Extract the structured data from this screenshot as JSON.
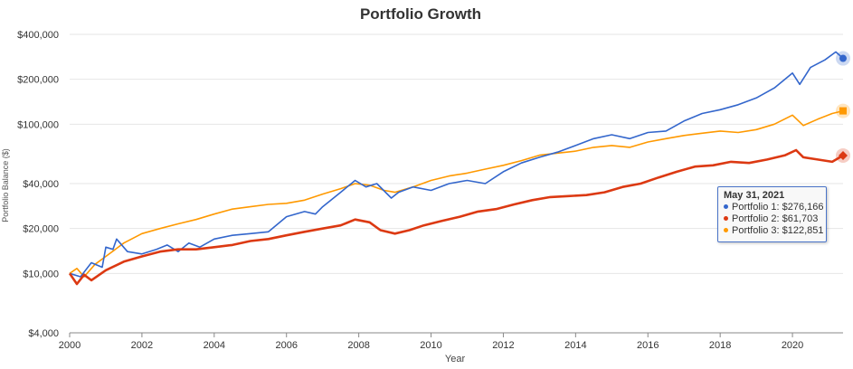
{
  "title": "Portfolio Growth",
  "colors": {
    "portfolio1": "#3366cc",
    "portfolio2": "#dc3912",
    "portfolio3": "#ff9900",
    "grid": "#e6e6e6",
    "axis": "#888888"
  },
  "tooltip": {
    "date": "May 31, 2021",
    "rows": [
      {
        "label": "Portfolio 1: $276,166",
        "color": "#3366cc"
      },
      {
        "label": "Portfolio 2: $61,703",
        "color": "#dc3912"
      },
      {
        "label": "Portfolio 3: $122,851",
        "color": "#ff9900"
      }
    ]
  },
  "chart_data": {
    "type": "line",
    "title": "Portfolio Growth",
    "xlabel": "Year",
    "ylabel": "Portfolio Balance ($)",
    "yscale": "log",
    "ylim": [
      4000,
      400000
    ],
    "xlim": [
      2000,
      2021.4
    ],
    "x_ticks": [
      "2000",
      "2002",
      "2004",
      "2006",
      "2008",
      "2010",
      "2012",
      "2014",
      "2016",
      "2018",
      "2020"
    ],
    "y_ticks": [
      {
        "value": 4000,
        "label": "$4,000"
      },
      {
        "value": 10000,
        "label": "$10,000"
      },
      {
        "value": 20000,
        "label": "$20,000"
      },
      {
        "value": 40000,
        "label": "$40,000"
      },
      {
        "value": 100000,
        "label": "$100,000"
      },
      {
        "value": 200000,
        "label": "$200,000"
      },
      {
        "value": 400000,
        "label": "$400,000"
      }
    ],
    "grid": true,
    "legend": "none",
    "series": [
      {
        "name": "Portfolio 1",
        "color": "#3366cc",
        "marker": "circle",
        "points": [
          [
            2000.0,
            10000
          ],
          [
            2000.3,
            9500
          ],
          [
            2000.6,
            11800
          ],
          [
            2000.9,
            11000
          ],
          [
            2001.0,
            15000
          ],
          [
            2001.2,
            14500
          ],
          [
            2001.3,
            17000
          ],
          [
            2001.6,
            14000
          ],
          [
            2002.0,
            13500
          ],
          [
            2002.4,
            14500
          ],
          [
            2002.7,
            15500
          ],
          [
            2003.0,
            14000
          ],
          [
            2003.3,
            16000
          ],
          [
            2003.6,
            15000
          ],
          [
            2004.0,
            17000
          ],
          [
            2004.5,
            18000
          ],
          [
            2005.0,
            18500
          ],
          [
            2005.5,
            19000
          ],
          [
            2006.0,
            24000
          ],
          [
            2006.5,
            26000
          ],
          [
            2006.8,
            25000
          ],
          [
            2007.0,
            28000
          ],
          [
            2007.5,
            35000
          ],
          [
            2007.9,
            42000
          ],
          [
            2008.2,
            38000
          ],
          [
            2008.5,
            40000
          ],
          [
            2008.9,
            32000
          ],
          [
            2009.1,
            35000
          ],
          [
            2009.5,
            38000
          ],
          [
            2010.0,
            36000
          ],
          [
            2010.5,
            40000
          ],
          [
            2011.0,
            42000
          ],
          [
            2011.5,
            40000
          ],
          [
            2012.0,
            48000
          ],
          [
            2012.5,
            55000
          ],
          [
            2013.0,
            60000
          ],
          [
            2013.5,
            65000
          ],
          [
            2014.0,
            72000
          ],
          [
            2014.5,
            80000
          ],
          [
            2015.0,
            85000
          ],
          [
            2015.5,
            80000
          ],
          [
            2016.0,
            88000
          ],
          [
            2016.5,
            90000
          ],
          [
            2017.0,
            105000
          ],
          [
            2017.5,
            118000
          ],
          [
            2018.0,
            125000
          ],
          [
            2018.5,
            135000
          ],
          [
            2019.0,
            150000
          ],
          [
            2019.5,
            175000
          ],
          [
            2020.0,
            220000
          ],
          [
            2020.2,
            185000
          ],
          [
            2020.5,
            240000
          ],
          [
            2020.9,
            270000
          ],
          [
            2021.2,
            305000
          ],
          [
            2021.4,
            276166
          ]
        ]
      },
      {
        "name": "Portfolio 2",
        "color": "#dc3912",
        "marker": "diamond",
        "points": [
          [
            2000.0,
            10000
          ],
          [
            2000.2,
            8500
          ],
          [
            2000.4,
            9800
          ],
          [
            2000.6,
            9000
          ],
          [
            2001.0,
            10500
          ],
          [
            2001.5,
            12000
          ],
          [
            2002.0,
            13000
          ],
          [
            2002.5,
            14000
          ],
          [
            2003.0,
            14500
          ],
          [
            2003.5,
            14500
          ],
          [
            2004.0,
            15000
          ],
          [
            2004.5,
            15500
          ],
          [
            2005.0,
            16500
          ],
          [
            2005.5,
            17000
          ],
          [
            2006.0,
            18000
          ],
          [
            2006.5,
            19000
          ],
          [
            2007.0,
            20000
          ],
          [
            2007.5,
            21000
          ],
          [
            2007.9,
            23000
          ],
          [
            2008.3,
            22000
          ],
          [
            2008.6,
            19500
          ],
          [
            2009.0,
            18500
          ],
          [
            2009.4,
            19500
          ],
          [
            2009.8,
            21000
          ],
          [
            2010.3,
            22500
          ],
          [
            2010.8,
            24000
          ],
          [
            2011.3,
            26000
          ],
          [
            2011.8,
            27000
          ],
          [
            2012.3,
            29000
          ],
          [
            2012.8,
            31000
          ],
          [
            2013.3,
            32500
          ],
          [
            2013.8,
            33000
          ],
          [
            2014.3,
            33500
          ],
          [
            2014.8,
            35000
          ],
          [
            2015.3,
            38000
          ],
          [
            2015.8,
            40000
          ],
          [
            2016.3,
            44000
          ],
          [
            2016.8,
            48000
          ],
          [
            2017.3,
            52000
          ],
          [
            2017.8,
            53000
          ],
          [
            2018.3,
            56000
          ],
          [
            2018.8,
            55000
          ],
          [
            2019.3,
            58000
          ],
          [
            2019.8,
            62000
          ],
          [
            2020.1,
            67000
          ],
          [
            2020.3,
            60000
          ],
          [
            2020.7,
            58000
          ],
          [
            2021.1,
            56000
          ],
          [
            2021.4,
            61703
          ]
        ]
      },
      {
        "name": "Portfolio 3",
        "color": "#ff9900",
        "marker": "square",
        "points": [
          [
            2000.0,
            10000
          ],
          [
            2000.2,
            10800
          ],
          [
            2000.4,
            9500
          ],
          [
            2000.7,
            11500
          ],
          [
            2001.0,
            13000
          ],
          [
            2001.5,
            16000
          ],
          [
            2002.0,
            18500
          ],
          [
            2002.5,
            20000
          ],
          [
            2003.0,
            21500
          ],
          [
            2003.5,
            23000
          ],
          [
            2004.0,
            25000
          ],
          [
            2004.5,
            27000
          ],
          [
            2005.0,
            28000
          ],
          [
            2005.5,
            29000
          ],
          [
            2006.0,
            29500
          ],
          [
            2006.5,
            31000
          ],
          [
            2007.0,
            34000
          ],
          [
            2007.5,
            37000
          ],
          [
            2007.9,
            40000
          ],
          [
            2008.3,
            39000
          ],
          [
            2008.7,
            36000
          ],
          [
            2009.0,
            35000
          ],
          [
            2009.5,
            38000
          ],
          [
            2010.0,
            42000
          ],
          [
            2010.5,
            45000
          ],
          [
            2011.0,
            47000
          ],
          [
            2011.5,
            50000
          ],
          [
            2012.0,
            53000
          ],
          [
            2012.5,
            57000
          ],
          [
            2013.0,
            62000
          ],
          [
            2013.5,
            64000
          ],
          [
            2014.0,
            66000
          ],
          [
            2014.5,
            70000
          ],
          [
            2015.0,
            72000
          ],
          [
            2015.5,
            70000
          ],
          [
            2016.0,
            76000
          ],
          [
            2016.5,
            80000
          ],
          [
            2017.0,
            84000
          ],
          [
            2017.5,
            87000
          ],
          [
            2018.0,
            90000
          ],
          [
            2018.5,
            88000
          ],
          [
            2019.0,
            92000
          ],
          [
            2019.5,
            100000
          ],
          [
            2020.0,
            115000
          ],
          [
            2020.3,
            98000
          ],
          [
            2020.7,
            108000
          ],
          [
            2021.1,
            118000
          ],
          [
            2021.4,
            122851
          ]
        ]
      }
    ]
  }
}
